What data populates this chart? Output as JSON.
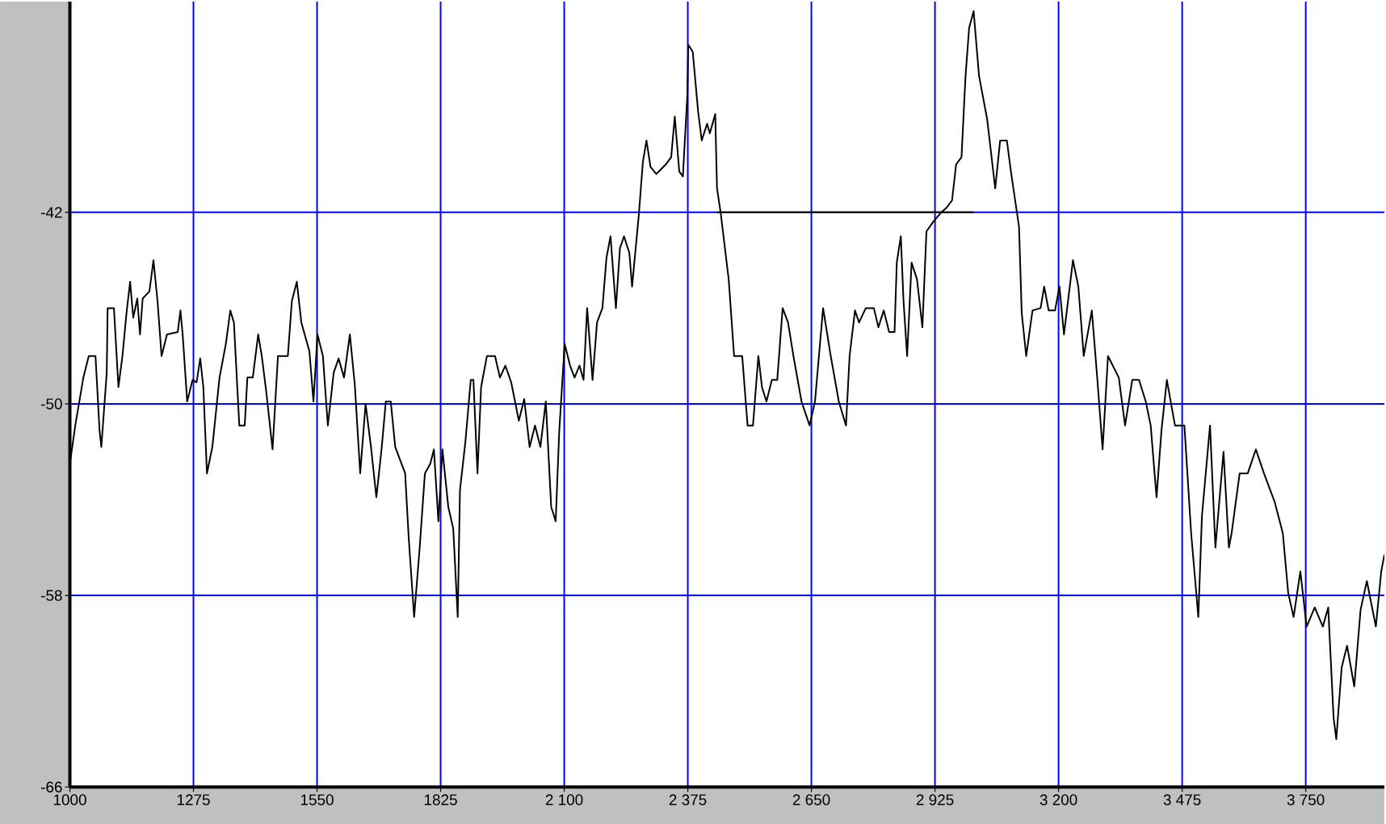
{
  "chart_data": {
    "type": "line",
    "xlim": [
      1000,
      3925
    ],
    "ylim": [
      -66,
      -33.2
    ],
    "xticks": [
      {
        "value": 1000,
        "label": "1000"
      },
      {
        "value": 1275,
        "label": "1275"
      },
      {
        "value": 1550,
        "label": "1550"
      },
      {
        "value": 1825,
        "label": "1825"
      },
      {
        "value": 2100,
        "label": "2 100"
      },
      {
        "value": 2375,
        "label": "2 375"
      },
      {
        "value": 2650,
        "label": "2 650"
      },
      {
        "value": 2925,
        "label": "2 925"
      },
      {
        "value": 3200,
        "label": "3 200"
      },
      {
        "value": 3475,
        "label": "3 475"
      },
      {
        "value": 3750,
        "label": "3 750"
      }
    ],
    "yticks": [
      -66,
      -58,
      -50,
      -42
    ],
    "grid": true,
    "marker": "none",
    "line_style": "solid",
    "series": [
      {
        "color": "#000000",
        "x": [
          1000,
          1012,
          1030,
          1042,
          1057,
          1066,
          1070,
          1082,
          1084,
          1098,
          1108,
          1117,
          1126,
          1134,
          1141,
          1150,
          1156,
          1162,
          1177,
          1186,
          1195,
          1204,
          1216,
          1240,
          1246,
          1251,
          1261,
          1273,
          1282,
          1290,
          1297,
          1305,
          1317,
          1333,
          1347,
          1357,
          1365,
          1377,
          1389,
          1395,
          1407,
          1419,
          1427,
          1437,
          1451,
          1463,
          1485,
          1494,
          1505,
          1515,
          1533,
          1542,
          1551,
          1563,
          1574,
          1587,
          1598,
          1610,
          1623,
          1634,
          1646,
          1658,
          1670,
          1682,
          1694,
          1703,
          1714,
          1724,
          1746,
          1754,
          1766,
          1778,
          1790,
          1802,
          1810,
          1820,
          1829,
          1842,
          1853,
          1863,
          1868,
          1880,
          1892,
          1898,
          1907,
          1915,
          1928,
          1946,
          1957,
          1969,
          1982,
          1999,
          2011,
          2023,
          2035,
          2047,
          2059,
          2071,
          2081,
          2089,
          2101,
          2113,
          2123,
          2134,
          2143,
          2151,
          2163,
          2173,
          2185,
          2194,
          2203,
          2215,
          2224,
          2233,
          2245,
          2251,
          2266,
          2275,
          2283,
          2292,
          2305,
          2326,
          2338,
          2346,
          2356,
          2364,
          2374,
          2376,
          2386,
          2398,
          2406,
          2418,
          2424,
          2436,
          2440,
          2448,
          2466,
          2478,
          2496,
          2508,
          2520,
          2532,
          2540,
          2550,
          2562,
          2574,
          2586,
          2598,
          2610,
          2628,
          2646,
          2658,
          2676,
          2693,
          2711,
          2727,
          2735,
          2747,
          2756,
          2771,
          2789,
          2799,
          2811,
          2823,
          2835,
          2840,
          2849,
          2855,
          2863,
          2873,
          2885,
          2897,
          2906,
          2921,
          2939,
          2951,
          2963,
          2972,
          2984,
          2993,
          3001,
          3011,
          3023,
          3041,
          3059,
          3070,
          3085,
          3094,
          3112,
          3118,
          3128,
          3142,
          3160,
          3168,
          3178,
          3192,
          3202,
          3212,
          3232,
          3244,
          3256,
          3274,
          3286,
          3298,
          3310,
          3334,
          3348,
          3364,
          3379,
          3394,
          3405,
          3418,
          3429,
          3441,
          3459,
          3480,
          3495,
          3511,
          3519,
          3537,
          3549,
          3567,
          3579,
          3585,
          3603,
          3621,
          3639,
          3657,
          3681,
          3699,
          3711,
          3723,
          3738,
          3752,
          3770,
          3788,
          3800,
          3812,
          3818,
          3830,
          3842,
          3858,
          3872,
          3886,
          3906,
          3918,
          3925
        ],
        "values": [
          -52.5,
          -50.9,
          -48.9,
          -48.0,
          -48.0,
          -51.1,
          -51.8,
          -48.7,
          -46.0,
          -46.0,
          -49.3,
          -48.0,
          -46.2,
          -44.9,
          -46.4,
          -45.6,
          -47.1,
          -45.6,
          -45.3,
          -44.0,
          -45.7,
          -48.0,
          -47.1,
          -47.0,
          -46.1,
          -47.1,
          -49.9,
          -49.0,
          -49.1,
          -48.1,
          -49.3,
          -52.9,
          -51.8,
          -48.9,
          -47.5,
          -46.1,
          -46.6,
          -50.9,
          -50.9,
          -48.9,
          -48.9,
          -47.1,
          -48.0,
          -49.5,
          -51.9,
          -48.0,
          -48.0,
          -45.7,
          -44.9,
          -46.6,
          -47.8,
          -49.9,
          -47.1,
          -48.0,
          -50.9,
          -48.7,
          -48.1,
          -48.9,
          -47.1,
          -49.2,
          -52.9,
          -50.0,
          -51.8,
          -53.9,
          -51.8,
          -49.9,
          -49.9,
          -51.8,
          -52.9,
          -55.6,
          -58.9,
          -56.1,
          -52.9,
          -52.5,
          -51.9,
          -54.9,
          -51.9,
          -54.3,
          -55.2,
          -58.9,
          -53.6,
          -51.6,
          -49.0,
          -49.0,
          -52.9,
          -49.3,
          -48.0,
          -48.0,
          -48.9,
          -48.4,
          -49.1,
          -50.7,
          -49.8,
          -51.8,
          -50.9,
          -51.8,
          -49.9,
          -54.3,
          -54.9,
          -51.1,
          -47.5,
          -48.4,
          -48.9,
          -48.4,
          -49.0,
          -46.0,
          -49.0,
          -46.6,
          -46.0,
          -43.9,
          -43.0,
          -46.0,
          -43.5,
          -43.0,
          -43.7,
          -45.1,
          -42.1,
          -39.9,
          -39.0,
          -40.1,
          -40.4,
          -40.0,
          -39.7,
          -38.0,
          -40.3,
          -40.5,
          -37.1,
          -35.0,
          -35.3,
          -37.8,
          -39.0,
          -38.3,
          -38.7,
          -37.9,
          -41.0,
          -42.0,
          -44.8,
          -48.0,
          -48.0,
          -50.9,
          -50.9,
          -48.0,
          -49.3,
          -49.9,
          -49.0,
          -49.0,
          -46.0,
          -46.6,
          -48.0,
          -49.9,
          -50.9,
          -49.9,
          -46.0,
          -48.0,
          -49.9,
          -50.9,
          -48.0,
          -46.1,
          -46.6,
          -46.0,
          -46.0,
          -46.8,
          -46.1,
          -47.0,
          -47.0,
          -44.1,
          -43.0,
          -45.7,
          -48.0,
          -44.1,
          -44.8,
          -46.8,
          -42.8,
          -42.4,
          -42.0,
          -41.8,
          -41.5,
          -40.0,
          -39.7,
          -36.3,
          -34.3,
          -33.6,
          -36.3,
          -38.1,
          -41.0,
          -39.0,
          -39.0,
          -40.3,
          -42.6,
          -46.2,
          -48.0,
          -46.1,
          -46.0,
          -45.1,
          -46.1,
          -46.1,
          -45.1,
          -47.1,
          -44.0,
          -45.1,
          -48.0,
          -46.1,
          -48.9,
          -51.9,
          -48.0,
          -48.9,
          -50.9,
          -49.0,
          -49.0,
          -49.9,
          -50.9,
          -53.9,
          -51.1,
          -49.0,
          -50.9,
          -50.9,
          -55.4,
          -58.9,
          -54.7,
          -50.9,
          -56.0,
          -52.0,
          -56.0,
          -55.4,
          -52.9,
          -52.9,
          -51.9,
          -52.9,
          -54.1,
          -55.4,
          -57.9,
          -58.9,
          -57.0,
          -59.3,
          -58.5,
          -59.3,
          -58.5,
          -63.1,
          -64.0,
          -61.0,
          -60.1,
          -61.8,
          -58.6,
          -57.4,
          -59.3,
          -57.0,
          -56.3
        ]
      },
      {
        "color": "#000000",
        "x": [
          2440,
          3011
        ],
        "values": [
          -42,
          -42
        ]
      }
    ]
  }
}
